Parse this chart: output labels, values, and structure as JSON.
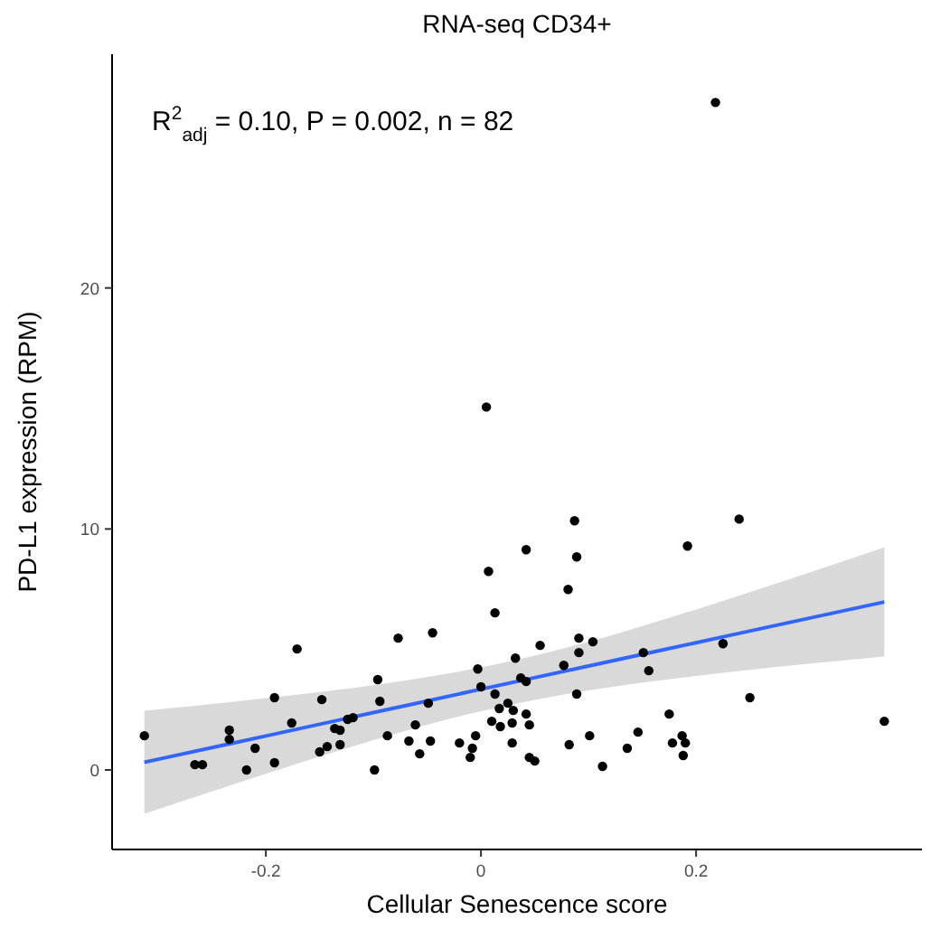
{
  "chart_data": {
    "type": "scatter",
    "title": "RNA-seq CD34+",
    "xlabel": "Cellular Senescence score",
    "ylabel": "PD-L1 expression (RPM)",
    "annotations": [
      "R$^{2}$$_{adj}$ = 0.10, P = 0.002, n = 82"
    ],
    "xlim": [
      -0.343,
      0.41
    ],
    "ylim": [
      -3.3,
      29.7
    ],
    "xticks": [
      -0.2,
      0,
      0.2
    ],
    "yticks": [
      0,
      10,
      20
    ],
    "grid": false,
    "series": [
      {
        "marker": "circle",
        "color": "#000000",
        "x": [
          -0.313,
          -0.266,
          -0.259,
          -0.234,
          -0.234,
          -0.218,
          -0.21,
          -0.192,
          -0.192,
          -0.176,
          -0.171,
          -0.15,
          -0.148,
          -0.143,
          -0.136,
          -0.131,
          -0.131,
          -0.124,
          -0.119,
          -0.099,
          -0.096,
          -0.094,
          -0.087,
          -0.077,
          -0.067,
          -0.061,
          -0.057,
          -0.049,
          -0.047,
          -0.045,
          -0.02,
          -0.01,
          -0.008,
          -0.005,
          -0.003,
          0.0,
          0.007,
          0.013,
          0.01,
          0.013,
          0.017,
          0.018,
          0.025,
          0.03,
          0.029,
          0.029,
          0.032,
          0.037,
          0.042,
          0.042,
          0.045,
          0.042,
          0.045,
          0.05,
          0.055,
          0.077,
          0.081,
          0.082,
          0.087,
          0.089,
          0.091,
          0.091,
          0.089,
          0.101,
          0.104,
          0.113,
          0.136,
          0.146,
          0.151,
          0.156,
          0.175,
          0.178,
          0.187,
          0.19,
          0.188,
          0.192,
          0.225,
          0.24,
          0.25,
          0.375,
          0.218,
          0.005
        ],
        "values": [
          1.42,
          0.22,
          0.22,
          1.65,
          1.27,
          0.0,
          0.9,
          3.0,
          0.3,
          1.95,
          5.02,
          0.75,
          2.92,
          0.97,
          1.72,
          1.65,
          1.05,
          2.1,
          2.17,
          0.0,
          3.75,
          2.85,
          1.42,
          5.47,
          1.2,
          1.87,
          0.67,
          2.77,
          1.2,
          5.69,
          1.12,
          0.52,
          0.9,
          1.42,
          4.19,
          3.45,
          8.24,
          6.52,
          2.02,
          3.15,
          2.55,
          1.8,
          2.77,
          2.47,
          1.95,
          1.12,
          4.64,
          3.82,
          3.67,
          2.32,
          1.87,
          9.14,
          0.52,
          0.37,
          5.17,
          4.34,
          7.49,
          1.05,
          10.34,
          8.84,
          5.47,
          4.87,
          3.15,
          1.42,
          5.32,
          0.15,
          0.9,
          1.57,
          4.87,
          4.12,
          2.32,
          1.12,
          1.42,
          1.12,
          0.6,
          9.29,
          5.24,
          10.41,
          3.0,
          2.02,
          27.7,
          15.06
        ]
      },
      {
        "type": "line",
        "color": "#3366ff",
        "x": [
          -0.313,
          -0.2,
          -0.1,
          0,
          0.1,
          0.2,
          0.3,
          0.375
        ],
        "values": [
          0.32,
          1.41,
          2.38,
          3.35,
          4.31,
          5.28,
          6.25,
          6.97
        ],
        "lower": [
          -1.82,
          -0.16,
          1.24,
          2.44,
          3.3,
          3.9,
          4.39,
          4.71
        ],
        "upper": [
          2.46,
          2.98,
          3.52,
          4.26,
          5.32,
          6.66,
          8.11,
          9.23
        ]
      }
    ]
  }
}
